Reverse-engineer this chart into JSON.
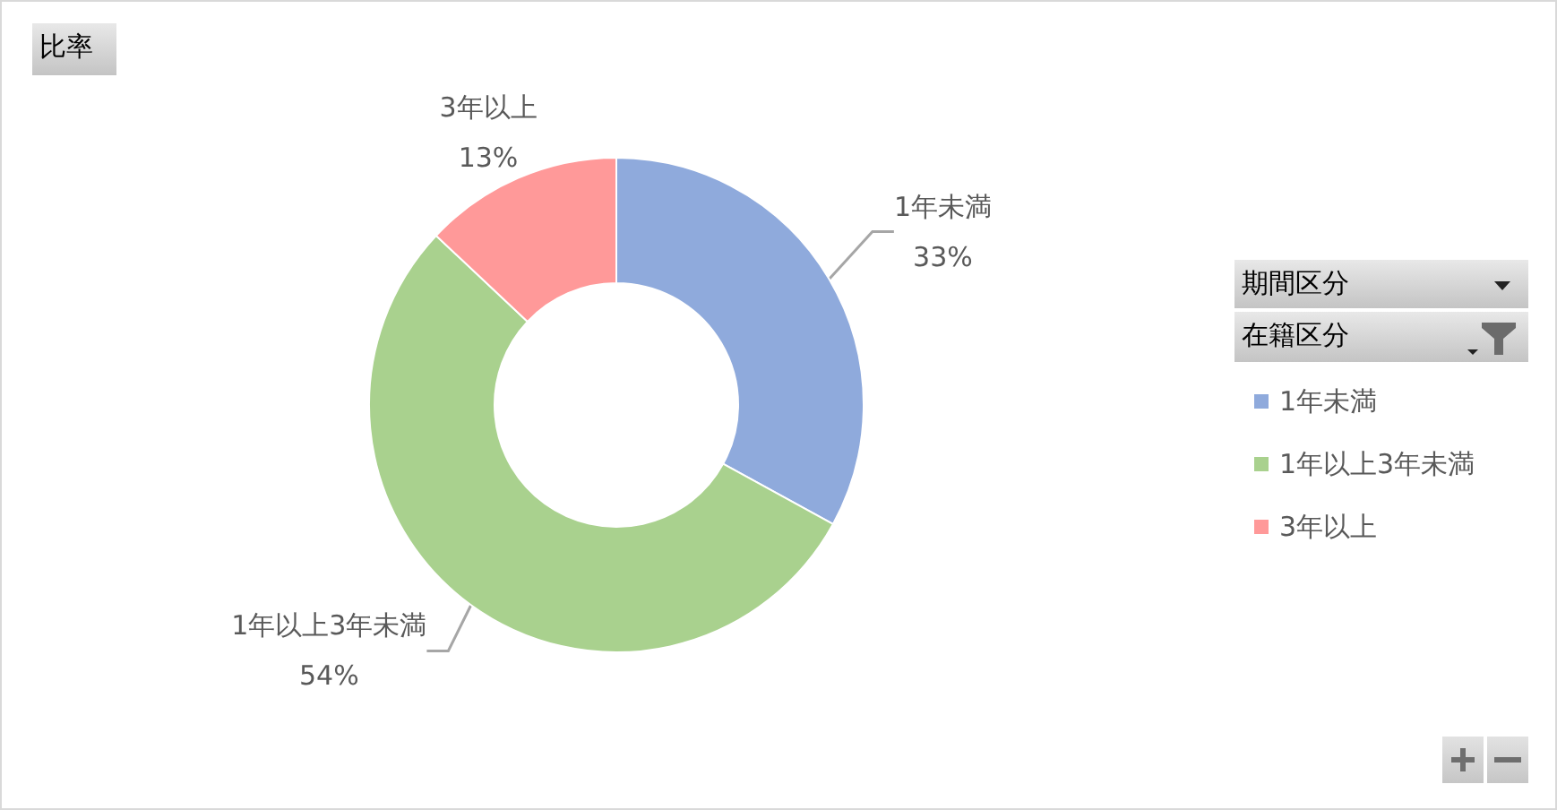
{
  "chart_data": {
    "type": "donut",
    "title": "比率",
    "legend_title": "在籍区分",
    "annotations": [
      "期間区分"
    ],
    "categories": [
      "1年未満",
      "1年以上3年未満",
      "3年以上"
    ],
    "values": [
      33,
      54,
      13
    ],
    "colors": [
      "#8faadc",
      "#a9d18e",
      "#ff9999"
    ],
    "value_labels": [
      "33%",
      "54%",
      "13%"
    ],
    "legend": "right"
  }
}
